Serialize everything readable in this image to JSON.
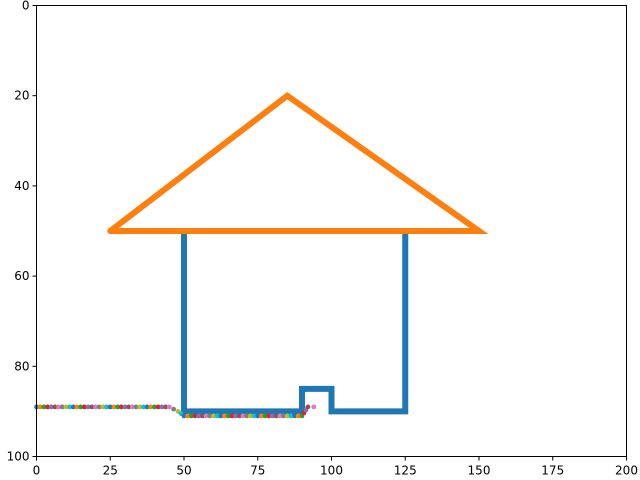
{
  "chart_data": {
    "type": "line",
    "title": "",
    "xlabel": "",
    "ylabel": "",
    "xlim": [
      0,
      200
    ],
    "ylim": [
      100,
      0
    ],
    "y_inverted": true,
    "grid": false,
    "x_ticks": [
      0,
      25,
      50,
      75,
      100,
      125,
      150,
      175,
      200
    ],
    "y_ticks": [
      0,
      20,
      40,
      60,
      80,
      100
    ],
    "series": [
      {
        "color": "#1f77b4",
        "style": "line",
        "x": [
          50,
          50,
          90,
          90,
          100,
          100,
          125,
          125,
          50
        ],
        "y": [
          50,
          90,
          90,
          85,
          85,
          90,
          90,
          50,
          50
        ]
      },
      {
        "color": "#ff7f0e",
        "style": "line",
        "x": [
          25,
          85,
          150,
          25
        ],
        "y": [
          50,
          20,
          50,
          50
        ]
      },
      {
        "style": "dotted",
        "colors": [
          "#1f77b4",
          "#ff7f0e",
          "#2ca02c",
          "#d62728",
          "#9467bd",
          "#8c564b",
          "#e377c2",
          "#7f7f7f",
          "#bcbd22",
          "#17becf"
        ],
        "x": [
          0,
          5,
          10,
          15,
          20,
          25,
          30,
          35,
          40,
          45,
          48,
          50,
          55,
          60,
          65,
          70,
          75,
          80,
          85,
          90,
          92,
          94
        ],
        "y": [
          89,
          89,
          89,
          89,
          89,
          89,
          89,
          89,
          89,
          89,
          90,
          91,
          91,
          91,
          91,
          91,
          91,
          91,
          91,
          91,
          89,
          89
        ]
      }
    ]
  }
}
